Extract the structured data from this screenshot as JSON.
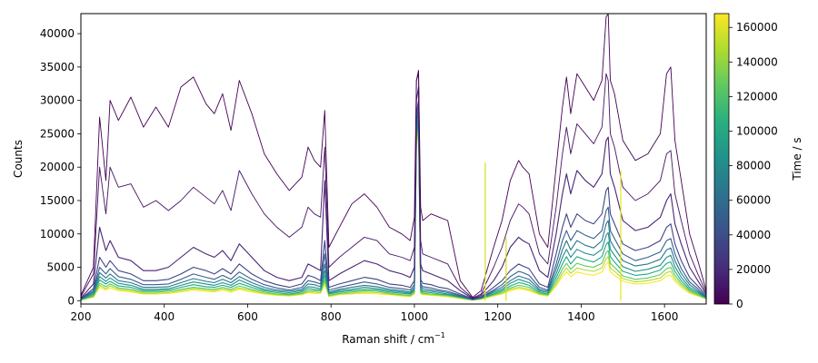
{
  "chart_data": {
    "type": "line",
    "title": "",
    "xlabel": "Raman shift / cm",
    "xlabel_sup": "−1",
    "ylabel": "Counts",
    "xlim": [
      200,
      1700
    ],
    "ylim": [
      -500,
      43000
    ],
    "xticks": [
      200,
      400,
      600,
      800,
      1000,
      1200,
      1400,
      1600
    ],
    "yticks": [
      0,
      5000,
      10000,
      15000,
      20000,
      25000,
      30000,
      35000,
      40000
    ],
    "grid": false,
    "colorbar": {
      "label": "Time / s",
      "range": [
        0,
        168000
      ],
      "ticks": [
        0,
        20000,
        40000,
        60000,
        80000,
        100000,
        120000,
        140000,
        160000
      ],
      "colormap": "viridis"
    },
    "x": [
      200,
      230,
      245,
      260,
      270,
      290,
      320,
      350,
      380,
      410,
      440,
      470,
      500,
      520,
      540,
      560,
      580,
      610,
      640,
      670,
      700,
      730,
      745,
      760,
      775,
      785,
      795,
      820,
      850,
      880,
      910,
      940,
      970,
      990,
      1000,
      1005,
      1010,
      1015,
      1020,
      1040,
      1060,
      1080,
      1110,
      1140,
      1160,
      1190,
      1210,
      1230,
      1250,
      1260,
      1275,
      1300,
      1320,
      1340,
      1355,
      1365,
      1375,
      1390,
      1410,
      1430,
      1450,
      1460,
      1465,
      1470,
      1480,
      1500,
      1530,
      1560,
      1590,
      1605,
      1615,
      1625,
      1640,
      1660,
      1680,
      1700
    ],
    "series": [
      {
        "time": 0,
        "color": "#440154",
        "values": [
          800,
          5000,
          27500,
          18000,
          30000,
          27000,
          30500,
          26000,
          29000,
          26000,
          32000,
          33500,
          29500,
          28000,
          31000,
          25500,
          33000,
          28000,
          22000,
          19000,
          16500,
          18500,
          23000,
          21000,
          20000,
          28500,
          8000,
          11000,
          14500,
          16000,
          14000,
          11000,
          10000,
          9000,
          12500,
          33000,
          34500,
          14000,
          12000,
          13000,
          12500,
          12000,
          3000,
          500,
          1500,
          8000,
          12000,
          18000,
          21000,
          20000,
          19000,
          10000,
          8000,
          20000,
          29000,
          33500,
          28000,
          34000,
          32000,
          30000,
          33000,
          42500,
          43000,
          33000,
          31000,
          24000,
          21000,
          22000,
          25000,
          34000,
          35000,
          24000,
          18000,
          10000,
          6000,
          1500
        ]
      },
      {
        "time": 4000,
        "color": "#471365",
        "values": [
          600,
          4000,
          20000,
          13000,
          20000,
          17000,
          17500,
          14000,
          15000,
          13500,
          15000,
          17000,
          15500,
          14500,
          16500,
          13500,
          19500,
          16000,
          13000,
          11000,
          9500,
          11000,
          14000,
          13000,
          12500,
          23000,
          5000,
          6500,
          8000,
          9500,
          9000,
          7000,
          6500,
          6000,
          8000,
          33000,
          34000,
          9000,
          7000,
          6500,
          6000,
          5500,
          2000,
          400,
          1000,
          5000,
          8000,
          12000,
          14500,
          14000,
          13000,
          7000,
          5500,
          14000,
          22000,
          26000,
          22000,
          26500,
          25000,
          23500,
          26000,
          34000,
          33000,
          25000,
          23000,
          17000,
          15000,
          16000,
          18000,
          22000,
          22500,
          16000,
          12000,
          7000,
          4000,
          1200
        ]
      },
      {
        "time": 10000,
        "color": "#482475",
        "values": [
          400,
          2500,
          11000,
          7500,
          9000,
          6500,
          6000,
          4500,
          4500,
          5000,
          6500,
          8000,
          7000,
          6500,
          7500,
          6000,
          8500,
          6500,
          4500,
          3500,
          3000,
          3500,
          5500,
          5000,
          4500,
          18000,
          3000,
          4000,
          5000,
          6000,
          5500,
          4500,
          4000,
          3500,
          5000,
          30000,
          32000,
          5500,
          4500,
          4000,
          3500,
          3000,
          1500,
          300,
          800,
          3000,
          5000,
          8000,
          9500,
          9000,
          8500,
          4500,
          3500,
          10000,
          16000,
          19000,
          16000,
          19500,
          18000,
          17000,
          19000,
          24000,
          24500,
          19000,
          17000,
          12000,
          10500,
          11000,
          12500,
          15000,
          16000,
          11500,
          8500,
          5000,
          3000,
          1000
        ]
      },
      {
        "time": 20000,
        "color": "#414487",
        "values": [
          300,
          1800,
          6500,
          5000,
          6000,
          4500,
          4000,
          3000,
          3000,
          3200,
          4000,
          5000,
          4500,
          4000,
          4800,
          4000,
          5500,
          4000,
          3000,
          2400,
          2000,
          2500,
          3800,
          3500,
          3000,
          9000,
          2000,
          2500,
          3000,
          3500,
          3200,
          2500,
          2300,
          2000,
          3000,
          28000,
          30000,
          3200,
          2600,
          2400,
          2000,
          1800,
          1000,
          250,
          600,
          2000,
          3000,
          4500,
          5500,
          5200,
          4800,
          2500,
          2000,
          7000,
          11000,
          13000,
          11000,
          13000,
          12000,
          11500,
          13000,
          16500,
          17000,
          13000,
          11500,
          8500,
          7500,
          8000,
          9000,
          11000,
          11500,
          8500,
          6000,
          3500,
          2200,
          800
        ]
      },
      {
        "time": 35000,
        "color": "#355f8d",
        "values": [
          300,
          1500,
          5000,
          4000,
          4800,
          3600,
          3200,
          2400,
          2400,
          2500,
          3200,
          4000,
          3500,
          3200,
          3800,
          3200,
          4300,
          3200,
          2400,
          1900,
          1600,
          2000,
          3000,
          2800,
          2500,
          7000,
          1600,
          2000,
          2400,
          2800,
          2500,
          2000,
          1800,
          1600,
          2400,
          27000,
          29000,
          2600,
          2100,
          1900,
          1600,
          1400,
          800,
          200,
          500,
          1600,
          2400,
          3600,
          4400,
          4200,
          3800,
          2000,
          1600,
          5500,
          9000,
          10500,
          9000,
          10500,
          9800,
          9300,
          10500,
          13500,
          14000,
          10500,
          9300,
          7000,
          6000,
          6500,
          7300,
          9000,
          9300,
          7000,
          4800,
          2800,
          1800,
          600
        ]
      },
      {
        "time": 60000,
        "color": "#2a788e",
        "values": [
          250,
          1300,
          4200,
          3400,
          4000,
          3000,
          2700,
          2000,
          2000,
          2100,
          2700,
          3300,
          2900,
          2700,
          3200,
          2700,
          3600,
          2700,
          2000,
          1600,
          1400,
          1700,
          2500,
          2400,
          2100,
          5500,
          1300,
          1700,
          2000,
          2300,
          2100,
          1700,
          1500,
          1300,
          2000,
          26000,
          28500,
          2200,
          1800,
          1600,
          1400,
          1200,
          700,
          200,
          450,
          1400,
          2000,
          3000,
          3700,
          3500,
          3200,
          1700,
          1400,
          4700,
          7600,
          9000,
          7600,
          9000,
          8300,
          7900,
          9000,
          11500,
          12000,
          9000,
          7900,
          6000,
          5200,
          5500,
          6200,
          7600,
          7900,
          6000,
          4100,
          2400,
          1500,
          500
        ]
      },
      {
        "time": 80000,
        "color": "#21918c",
        "values": [
          200,
          1100,
          3600,
          2900,
          3400,
          2600,
          2300,
          1700,
          1700,
          1800,
          2300,
          2800,
          2500,
          2300,
          2700,
          2300,
          3100,
          2300,
          1700,
          1400,
          1200,
          1500,
          2100,
          2000,
          1800,
          4500,
          1100,
          1500,
          1700,
          2000,
          1800,
          1500,
          1300,
          1100,
          1700,
          25000,
          27500,
          1900,
          1500,
          1400,
          1200,
          1000,
          600,
          150,
          400,
          1200,
          1700,
          2600,
          3200,
          3000,
          2700,
          1500,
          1200,
          4000,
          6500,
          7700,
          6500,
          7700,
          7100,
          6800,
          7700,
          9800,
          10200,
          7700,
          6800,
          5100,
          4400,
          4700,
          5300,
          6500,
          6800,
          5100,
          3500,
          2000,
          1300,
          450
        ]
      },
      {
        "time": 110000,
        "color": "#22a884",
        "values": [
          150,
          900,
          3100,
          2500,
          2900,
          2200,
          2000,
          1500,
          1500,
          1600,
          2000,
          2400,
          2100,
          2000,
          2300,
          2000,
          2600,
          2000,
          1500,
          1200,
          1000,
          1300,
          1800,
          1700,
          1600,
          3800,
          1000,
          1300,
          1500,
          1700,
          1600,
          1300,
          1100,
          1000,
          1500,
          24500,
          27000,
          1600,
          1300,
          1200,
          1000,
          900,
          500,
          150,
          350,
          1000,
          1500,
          2200,
          2700,
          2600,
          2300,
          1300,
          1000,
          3400,
          5500,
          6600,
          5500,
          6600,
          6100,
          5800,
          6600,
          8400,
          8800,
          6600,
          5800,
          4400,
          3800,
          4000,
          4600,
          5600,
          5800,
          4400,
          3000,
          1700,
          1100,
          400
        ]
      },
      {
        "time": 135000,
        "color": "#5ec962",
        "values": [
          100,
          700,
          2600,
          2100,
          2500,
          1900,
          1700,
          1300,
          1300,
          1400,
          1700,
          2000,
          1800,
          1700,
          2000,
          1700,
          2200,
          1700,
          1300,
          1000,
          900,
          1100,
          1500,
          1500,
          1400,
          3200,
          800,
          1100,
          1300,
          1500,
          1400,
          1100,
          900,
          800,
          1300,
          24000,
          26500,
          1400,
          1100,
          1000,
          900,
          800,
          450,
          100,
          300,
          900,
          1300,
          1900,
          2300,
          2200,
          2000,
          1100,
          900,
          2900,
          4700,
          5600,
          4700,
          5600,
          5200,
          5000,
          5600,
          7200,
          7500,
          5600,
          5000,
          3700,
          3200,
          3400,
          3900,
          4800,
          5000,
          3800,
          2600,
          1500,
          900,
          350
        ]
      },
      {
        "time": 155000,
        "color": "#addc30",
        "values": [
          100,
          600,
          2300,
          1800,
          2200,
          1700,
          1500,
          1100,
          1100,
          1200,
          1500,
          1800,
          1600,
          1500,
          1800,
          1500,
          1900,
          1500,
          1100,
          900,
          800,
          1000,
          1300,
          1300,
          1200,
          2800,
          700,
          1000,
          1100,
          1300,
          1200,
          1000,
          800,
          700,
          1100,
          23500,
          26000,
          1200,
          1000,
          900,
          800,
          700,
          400,
          100,
          250,
          800,
          1100,
          1700,
          2000,
          1900,
          1700,
          1000,
          800,
          2500,
          4100,
          4900,
          4100,
          4900,
          4600,
          4400,
          4900,
          6300,
          6600,
          4900,
          4400,
          3300,
          2800,
          3000,
          3400,
          4200,
          4400,
          3300,
          2300,
          1300,
          800,
          300
        ]
      },
      {
        "time": 168000,
        "color": "#fde725",
        "values": [
          100,
          500,
          2000,
          1600,
          1900,
          1500,
          1300,
          1000,
          1000,
          1100,
          1300,
          1600,
          1400,
          1300,
          1600,
          1300,
          1700,
          1300,
          1000,
          800,
          700,
          900,
          1200,
          1100,
          1100,
          2500,
          600,
          900,
          1000,
          1100,
          1000,
          900,
          700,
          600,
          1000,
          23000,
          25500,
          1000,
          900,
          800,
          700,
          600,
          300,
          80,
          200,
          700,
          1000,
          1500,
          1800,
          1700,
          1500,
          900,
          700,
          2200,
          3600,
          4300,
          3600,
          4300,
          4000,
          3800,
          4300,
          5500,
          5800,
          4300,
          3800,
          2900,
          2500,
          2600,
          3000,
          3700,
          3800,
          2900,
          2000,
          1100,
          700,
          250
        ]
      }
    ],
    "spikes": [
      {
        "x": 1170,
        "y": 20700,
        "color": "#d5e21a"
      },
      {
        "x": 1220,
        "y": 9500,
        "color": "#d5e21a"
      },
      {
        "x": 1495,
        "y": 19500,
        "color": "#e6e419"
      }
    ]
  }
}
